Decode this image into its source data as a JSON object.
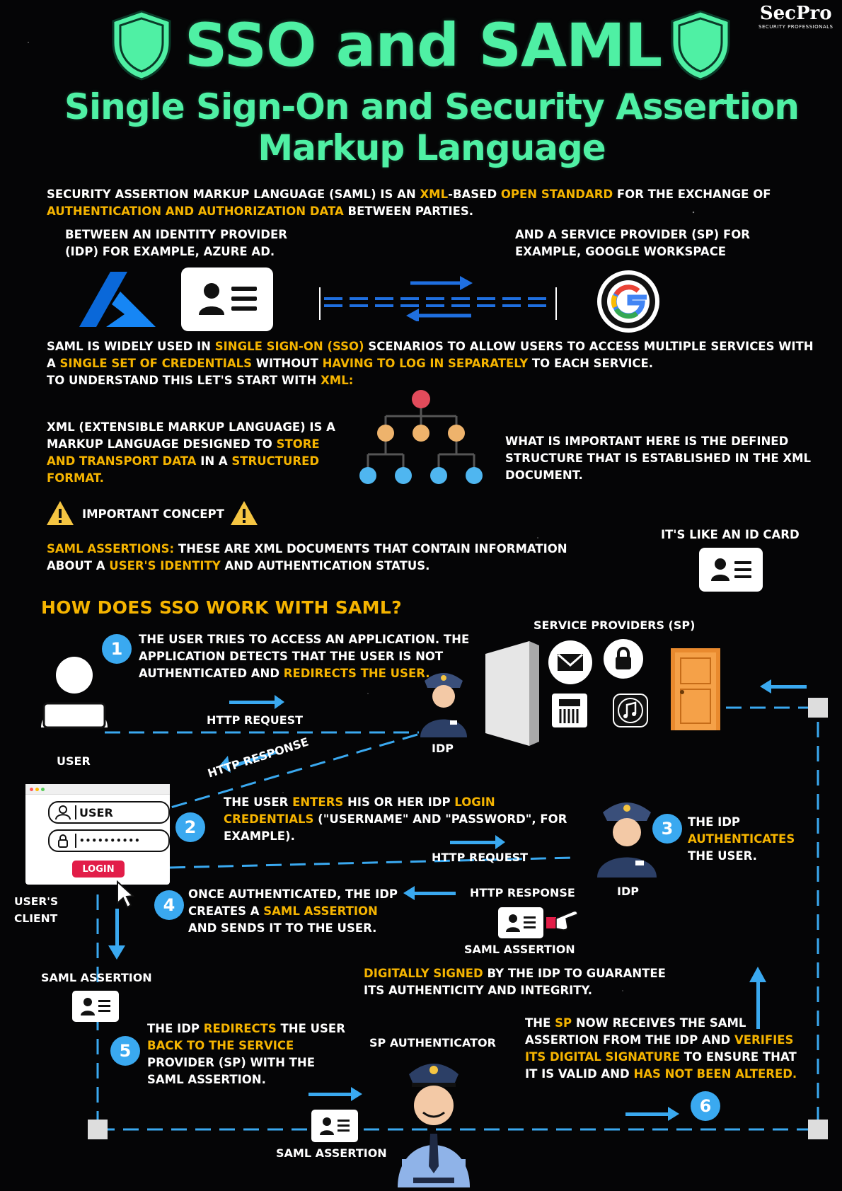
{
  "brand": {
    "name": "SecPro",
    "tagline": "SECURITY PROFESSIONALS"
  },
  "title": "SSO and SAML",
  "subtitle_line1": "Single Sign-On and Security Assertion",
  "subtitle_line2": "Markup Language",
  "intro": {
    "p1": "Security Assertion Markup Language (SAML) is an ",
    "p1_hl1": "XML",
    "p1b": "-based ",
    "p1_hl2": "open standard",
    "p1c": " for the exchange of ",
    "p1_hl3": "authentication and authorization data",
    "p1d": " between parties."
  },
  "idp_text": "Between an Identity Provider (IdP) for example, Azure AD.",
  "sp_text": "and a Service Provider (SP) for example, Google Workspace",
  "sso": {
    "a": "SAML is widely used in ",
    "hl1": "Single Sign-On (SSO)",
    "b": " scenarios to allow users to access multiple services with a ",
    "hl2": "single set of credentials",
    "c": " without ",
    "hl3": "having to log in separately",
    "d": " to each service.",
    "e": "To understand this let's start with ",
    "hl4": "XML:"
  },
  "xml": {
    "a": "XML (Extensible Markup Language) is a markup language designed to ",
    "hl1": "store and transport data",
    "b": " in a ",
    "hl2": "structured format.",
    "right": "What is important here is the defined structure that is established in the XML document."
  },
  "important": "IMPORTANT CONCEPT",
  "assertions": {
    "hl": "SAML Assertions:",
    "a": " These are XML documents that contain information about a ",
    "hl2": "user's identity",
    "b": " and authentication status."
  },
  "id_card_label": "It's like an ID card",
  "how_title": "HOW DOES SSO WORK WITH SAML?",
  "steps": {
    "s1_num": "1",
    "s1_a": "The user tries to access an application. The application detects that the user is not authenticated and ",
    "s1_hl": "redirects the user.",
    "s2_num": "2",
    "s2_a": "The user ",
    "s2_hl1": "enters",
    "s2_b": " his or her IdP ",
    "s2_hl2": "login credentials",
    "s2_c": " (\"username\" and \"password\", for example).",
    "s3_num": "3",
    "s3_a": "The IdP ",
    "s3_hl": "authenticates",
    "s3_b": " the user.",
    "s4_num": "4",
    "s4_a": "Once authenticated, the IdP creates a ",
    "s4_hl": "SAML assertion",
    "s4_b": " and sends it to the user.",
    "signed_hl": "Digitally signed",
    "signed": " by the IdP to guarantee its authenticity and integrity.",
    "s5_num": "5",
    "s5_a": "The IdP ",
    "s5_hl1": "redirects",
    "s5_b": " the user ",
    "s5_hl2": "back to the service",
    "s5_c": " provider (SP) with the SAML assertion.",
    "s6_num": "6",
    "s6_a": "The ",
    "s6_hl1": "SP",
    "s6_b": " now receives the SAML assertion from the IdP and ",
    "s6_hl2": "verifies its digital signature",
    "s6_c": " to ensure that it is valid and ",
    "s6_hl3": "has not been altered."
  },
  "labels": {
    "user": "USER",
    "idp": "IdP",
    "idp2": "IdP",
    "http_request": "HTTP REQUEST",
    "http_response": "HTTP RESPONSE",
    "http_request2": "HTTP REQUEST",
    "http_response2": "HTTP RESPONSE",
    "service_providers": "SERVICE PROVIDERS (SP)",
    "users_client": "USER'S CLIENT",
    "saml_assertion_a": "SAML ASSERTION",
    "saml_assertion_b": "SAML ASSERTION",
    "saml_assertion_c": "SAML ASSERTION",
    "sp_authenticator": "SP AUTHENTICATOR",
    "login_user": "USER",
    "login_pass": "••••••••••",
    "login_button": "LOGIN"
  },
  "colors": {
    "accent_green": "#4ff0a4",
    "highlight": "#f5b400",
    "flow_blue": "#3aa9f0",
    "azure_blue": "#0a68d9"
  }
}
